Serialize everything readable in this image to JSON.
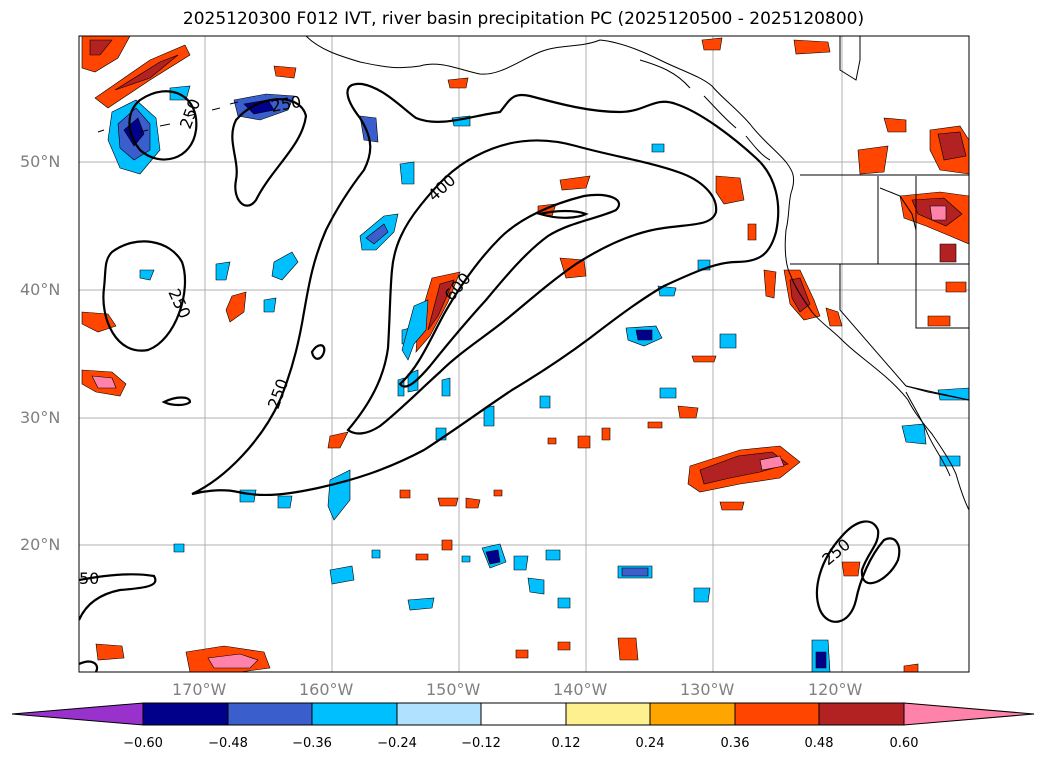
{
  "title": "2025120300 F012 IVT, river basin precipitation PC (2025120500 - 2025120800)",
  "latitude_labels": [
    "50°N",
    "40°N",
    "30°N",
    "20°N"
  ],
  "longitude_labels": [
    "170°W",
    "160°W",
    "150°W",
    "140°W",
    "130°W",
    "120°W"
  ],
  "contour_labels": [
    "250",
    "250",
    "250",
    "400",
    "600",
    "250",
    "250",
    "50"
  ],
  "colorbar": {
    "ticks": [
      "−0.60",
      "−0.48",
      "−0.36",
      "−0.24",
      "−0.12",
      "0.12",
      "0.24",
      "0.36",
      "0.48",
      "0.60"
    ],
    "colors": [
      "#9932cc",
      "#00008b",
      "#3a5fcd",
      "#00bfff",
      "#b0e2ff",
      "#ffffff",
      "#fff08f",
      "#ffa500",
      "#ff4500",
      "#b22222",
      "#ff82ab"
    ]
  },
  "colors": {
    "line": "#000000",
    "grid": "#b0b0b0",
    "labels": "#808080"
  }
}
